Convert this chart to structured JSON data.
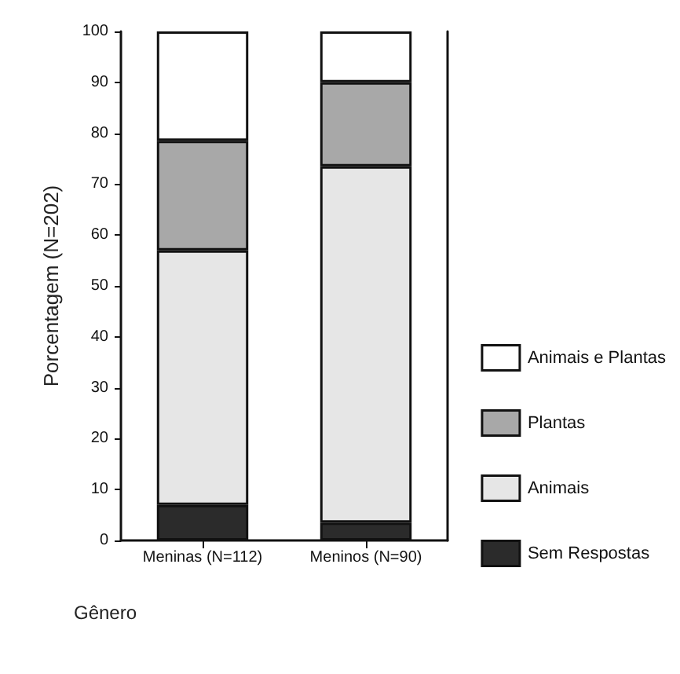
{
  "chart_data": {
    "type": "bar",
    "stacked": true,
    "xlabel": "Gênero",
    "ylabel": "Porcentagem (N=202)",
    "categories": [
      "Meninas (N=112)",
      "Meninos (N=90)"
    ],
    "series": [
      {
        "name": "Sem Respostas",
        "color": "#2b2b2b",
        "values": [
          7,
          3.5
        ]
      },
      {
        "name": "Animais",
        "color": "#e6e6e6",
        "values": [
          50,
          70
        ]
      },
      {
        "name": "Plantas",
        "color": "#a8a8a8",
        "values": [
          21.5,
          16.5
        ]
      },
      {
        "name": "Animais e Plantas",
        "color": "#ffffff",
        "values": [
          21.5,
          10
        ]
      }
    ],
    "ylim": [
      0,
      100
    ],
    "yticks": [
      0,
      10,
      20,
      30,
      40,
      50,
      60,
      70,
      80,
      90,
      100
    ],
    "grid": false,
    "legend": "right"
  }
}
